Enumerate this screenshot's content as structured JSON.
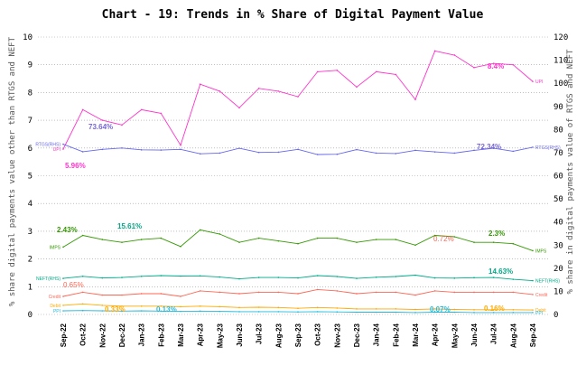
{
  "chart_data": {
    "type": "line",
    "title": "Chart - 19: Trends in % Share of Digital Payment Value",
    "ylabel_left": "% share digital payments value other than RTGS and NEFT",
    "ylabel_right": "% share in digital payments value of RTGS and NEFT",
    "ylim_left": [
      0,
      10
    ],
    "ylim_right": [
      0,
      120
    ],
    "yticks_left": [
      "0",
      "1",
      "2",
      "3",
      "4",
      "5",
      "6",
      "7",
      "8",
      "9",
      "10"
    ],
    "yticks_right": [
      "0",
      "10",
      "20",
      "30",
      "40",
      "50",
      "60",
      "70",
      "80",
      "90",
      "100",
      "110",
      "120"
    ],
    "grid": "horizontal-dotted",
    "x": [
      "Sep-22",
      "Oct-22",
      "Nov-22",
      "Dec-22",
      "Jan-23",
      "Feb-23",
      "Mar-23",
      "Apr-23",
      "May-23",
      "Jun-23",
      "Jul-23",
      "Aug-23",
      "Sep-23",
      "Oct-23",
      "Nov-23",
      "Dec-23",
      "Jan-24",
      "Feb-24",
      "Mar-24",
      "Apr-24",
      "May-24",
      "Jun-24",
      "Jul-24",
      "Aug-24",
      "Sep-24"
    ],
    "series": [
      {
        "name": "UPI",
        "axis": "left",
        "color": "#ff33cc",
        "values": [
          5.96,
          7.38,
          7.0,
          6.83,
          7.38,
          7.25,
          6.1,
          8.3,
          8.05,
          7.45,
          8.15,
          8.05,
          7.85,
          8.75,
          8.8,
          8.2,
          8.75,
          8.65,
          7.75,
          9.5,
          9.35,
          8.9,
          9.05,
          9.0,
          8.4
        ]
      },
      {
        "name": "RTGS(RHS)",
        "axis": "right",
        "color": "#6666ee",
        "values": [
          73.64,
          70.4,
          71.4,
          72.0,
          71.2,
          71.1,
          71.4,
          69.5,
          69.8,
          71.9,
          70.1,
          70.2,
          71.4,
          69.2,
          69.3,
          71.3,
          69.8,
          69.6,
          71.0,
          70.3,
          69.8,
          71.0,
          71.9,
          70.6,
          72.34
        ]
      },
      {
        "name": "IMPS",
        "axis": "left",
        "color": "#339900",
        "values": [
          2.43,
          2.85,
          2.7,
          2.6,
          2.7,
          2.75,
          2.45,
          3.05,
          2.9,
          2.6,
          2.75,
          2.65,
          2.55,
          2.75,
          2.75,
          2.6,
          2.7,
          2.7,
          2.5,
          2.85,
          2.8,
          2.6,
          2.6,
          2.55,
          2.3
        ]
      },
      {
        "name": "NEFT(RHS)",
        "axis": "right",
        "color": "#00aa88",
        "values": [
          15.61,
          16.5,
          15.8,
          16.0,
          16.5,
          16.8,
          16.6,
          16.7,
          16.2,
          15.4,
          16.0,
          16.0,
          15.8,
          16.8,
          16.4,
          15.6,
          16.1,
          16.4,
          17.0,
          15.8,
          15.7,
          15.9,
          16.0,
          15.2,
          14.63
        ]
      },
      {
        "name": "Credit",
        "axis": "left",
        "color": "#ff6655",
        "values": [
          0.65,
          0.8,
          0.7,
          0.7,
          0.75,
          0.75,
          0.65,
          0.85,
          0.8,
          0.75,
          0.8,
          0.8,
          0.75,
          0.9,
          0.85,
          0.75,
          0.8,
          0.8,
          0.7,
          0.85,
          0.8,
          0.8,
          0.8,
          0.8,
          0.72
        ]
      },
      {
        "name": "Debit",
        "axis": "left",
        "color": "#ffaa00",
        "values": [
          0.33,
          0.38,
          0.33,
          0.3,
          0.3,
          0.3,
          0.28,
          0.3,
          0.28,
          0.25,
          0.26,
          0.25,
          0.22,
          0.25,
          0.23,
          0.2,
          0.2,
          0.2,
          0.18,
          0.2,
          0.18,
          0.17,
          0.17,
          0.17,
          0.16
        ]
      },
      {
        "name": "PPI",
        "axis": "left",
        "color": "#22bbdd",
        "values": [
          0.13,
          0.14,
          0.13,
          0.12,
          0.13,
          0.12,
          0.11,
          0.12,
          0.11,
          0.1,
          0.1,
          0.1,
          0.09,
          0.1,
          0.09,
          0.08,
          0.08,
          0.08,
          0.07,
          0.08,
          0.08,
          0.07,
          0.07,
          0.07,
          0.07
        ]
      }
    ],
    "annotations": [
      {
        "text": "73.64%",
        "color": "#7766dd"
      },
      {
        "text": "5.96%",
        "color": "#ff33cc"
      },
      {
        "text": "2.43%",
        "color": "#339900"
      },
      {
        "text": "15.61%",
        "color": "#00aa88"
      },
      {
        "text": "0.65%",
        "color": "#ff6655"
      },
      {
        "text": "0.33%",
        "color": "#ffaa00"
      },
      {
        "text": "0.13%",
        "color": "#22bbdd"
      },
      {
        "text": "8.4%",
        "color": "#ff33cc"
      },
      {
        "text": "72.34%",
        "color": "#7766dd"
      },
      {
        "text": "2.3%",
        "color": "#339900"
      },
      {
        "text": "14.63%",
        "color": "#00aa88"
      },
      {
        "text": "0.72%",
        "color": "#ff6655"
      },
      {
        "text": "0.16%",
        "color": "#ffaa00"
      },
      {
        "text": "0.07%",
        "color": "#22bbdd"
      }
    ]
  }
}
